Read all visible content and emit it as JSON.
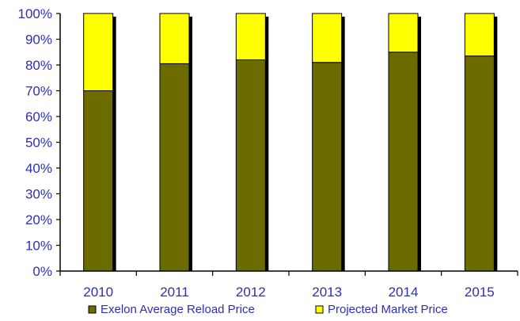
{
  "chart_data": {
    "type": "bar",
    "stacked": true,
    "percent_stacked": true,
    "categories": [
      "2010",
      "2011",
      "2012",
      "2013",
      "2014",
      "2015"
    ],
    "series": [
      {
        "name": "Exelon Average Reload Price",
        "color": "#6b6b00",
        "values": [
          70,
          80.5,
          82,
          81,
          85,
          83.5
        ]
      },
      {
        "name": "Projected Market Price",
        "color": "#ffff00",
        "values": [
          30,
          19.5,
          18,
          19,
          15,
          16.5
        ]
      }
    ],
    "y_ticks": [
      "0%",
      "10%",
      "20%",
      "30%",
      "40%",
      "50%",
      "60%",
      "70%",
      "80%",
      "90%",
      "100%"
    ],
    "ylim": [
      0,
      100
    ],
    "grid": false,
    "legend_position": "bottom",
    "colors": {
      "axis_text": "#2e2eb8",
      "axis_line": "#000000",
      "bar_shadow": "#000000"
    }
  }
}
